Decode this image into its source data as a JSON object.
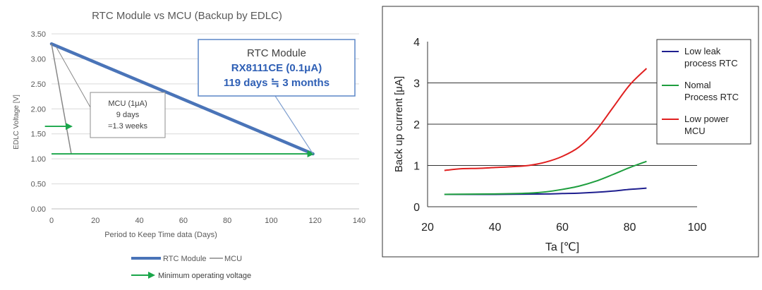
{
  "chart_data": [
    {
      "type": "line",
      "title": "RTC Module vs MCU (Backup by EDLC)",
      "xlabel": "Period to Keep Time data (Days)",
      "ylabel": "EDLC Voltage [V]",
      "xlim": [
        0,
        140
      ],
      "ylim": [
        0,
        3.5
      ],
      "xticks": [
        0,
        20,
        40,
        60,
        80,
        100,
        120,
        140
      ],
      "xtick_labels": [
        "0",
        "20",
        "40",
        "60",
        "80",
        "100",
        "120",
        "140"
      ],
      "yticks": [
        0,
        0.5,
        1,
        1.5,
        2,
        2.5,
        3,
        3.5
      ],
      "ytick_labels": [
        "0.00",
        "0.50",
        "1.00",
        "1.50",
        "2.00",
        "2.50",
        "3.00",
        "3.50"
      ],
      "grid": "horizontal",
      "series": [
        {
          "name": "RTC Module",
          "x": [
            0,
            119
          ],
          "y": [
            3.3,
            1.1
          ]
        },
        {
          "name": "MCU",
          "x": [
            0,
            9
          ],
          "y": [
            3.3,
            1.1
          ]
        }
      ],
      "legend": {
        "placement": "bottom",
        "items": [
          "RTC Module",
          "MCU"
        ]
      },
      "min_voltage_legend": "Minimum operating voltage",
      "min_voltage_arrows": [
        {
          "x": [
            0,
            119
          ],
          "y": 1.1
        },
        {
          "x": [
            -3,
            9
          ],
          "y": 1.65
        }
      ],
      "annotations": {
        "rtc": {
          "line1": "RTC Module",
          "line2": "RX8111CE (0.1μA)",
          "line3": "119 days ≒ 3 months",
          "points_to": [
            119,
            1.1
          ]
        },
        "mcu": {
          "line1": "MCU (1μA)",
          "line2": "9 days",
          "line3": "=1.3 weeks",
          "points_to": [
            2,
            3.25
          ]
        }
      },
      "colors": {
        "rtc": "#4a74b8",
        "mcu": "#888888",
        "arrow": "#1aa64a",
        "grid": "#d9d9d9"
      }
    },
    {
      "type": "line",
      "xlabel": "Ta [℃]",
      "ylabel": "Back up current [μA]",
      "xlim": [
        20,
        100
      ],
      "ylim": [
        0,
        4
      ],
      "xticks": [
        20,
        40,
        60,
        80,
        100
      ],
      "xtick_labels": [
        "20",
        "40",
        "60",
        "80",
        "100"
      ],
      "yticks": [
        0,
        1,
        2,
        3,
        4
      ],
      "ytick_labels": [
        "0",
        "1",
        "2",
        "3",
        "4"
      ],
      "grid": "horizontal",
      "series": [
        {
          "name": "Low leak process RTC",
          "label_lines": [
            "Low leak",
            "process RTC"
          ],
          "color": "#1f1f8f",
          "x": [
            25,
            40,
            55,
            60,
            65,
            70,
            75,
            80,
            85
          ],
          "y": [
            0.3,
            0.3,
            0.31,
            0.32,
            0.33,
            0.35,
            0.38,
            0.42,
            0.45
          ]
        },
        {
          "name": "Nomal Process RTC",
          "label_lines": [
            "Nomal",
            "Process RTC"
          ],
          "color": "#1e9e3e",
          "x": [
            25,
            40,
            50,
            55,
            60,
            65,
            70,
            75,
            80,
            85
          ],
          "y": [
            0.3,
            0.31,
            0.33,
            0.36,
            0.42,
            0.5,
            0.62,
            0.78,
            0.95,
            1.1
          ]
        },
        {
          "name": "Low power MCU",
          "label_lines": [
            "Low power",
            "MCU"
          ],
          "color": "#e02020",
          "x": [
            25,
            30,
            35,
            40,
            45,
            50,
            55,
            60,
            65,
            70,
            75,
            80,
            85
          ],
          "y": [
            0.88,
            0.92,
            0.93,
            0.95,
            0.97,
            1.0,
            1.08,
            1.22,
            1.45,
            1.85,
            2.4,
            2.95,
            3.35
          ]
        }
      ],
      "legend": {
        "placement": "top-right"
      }
    }
  ]
}
